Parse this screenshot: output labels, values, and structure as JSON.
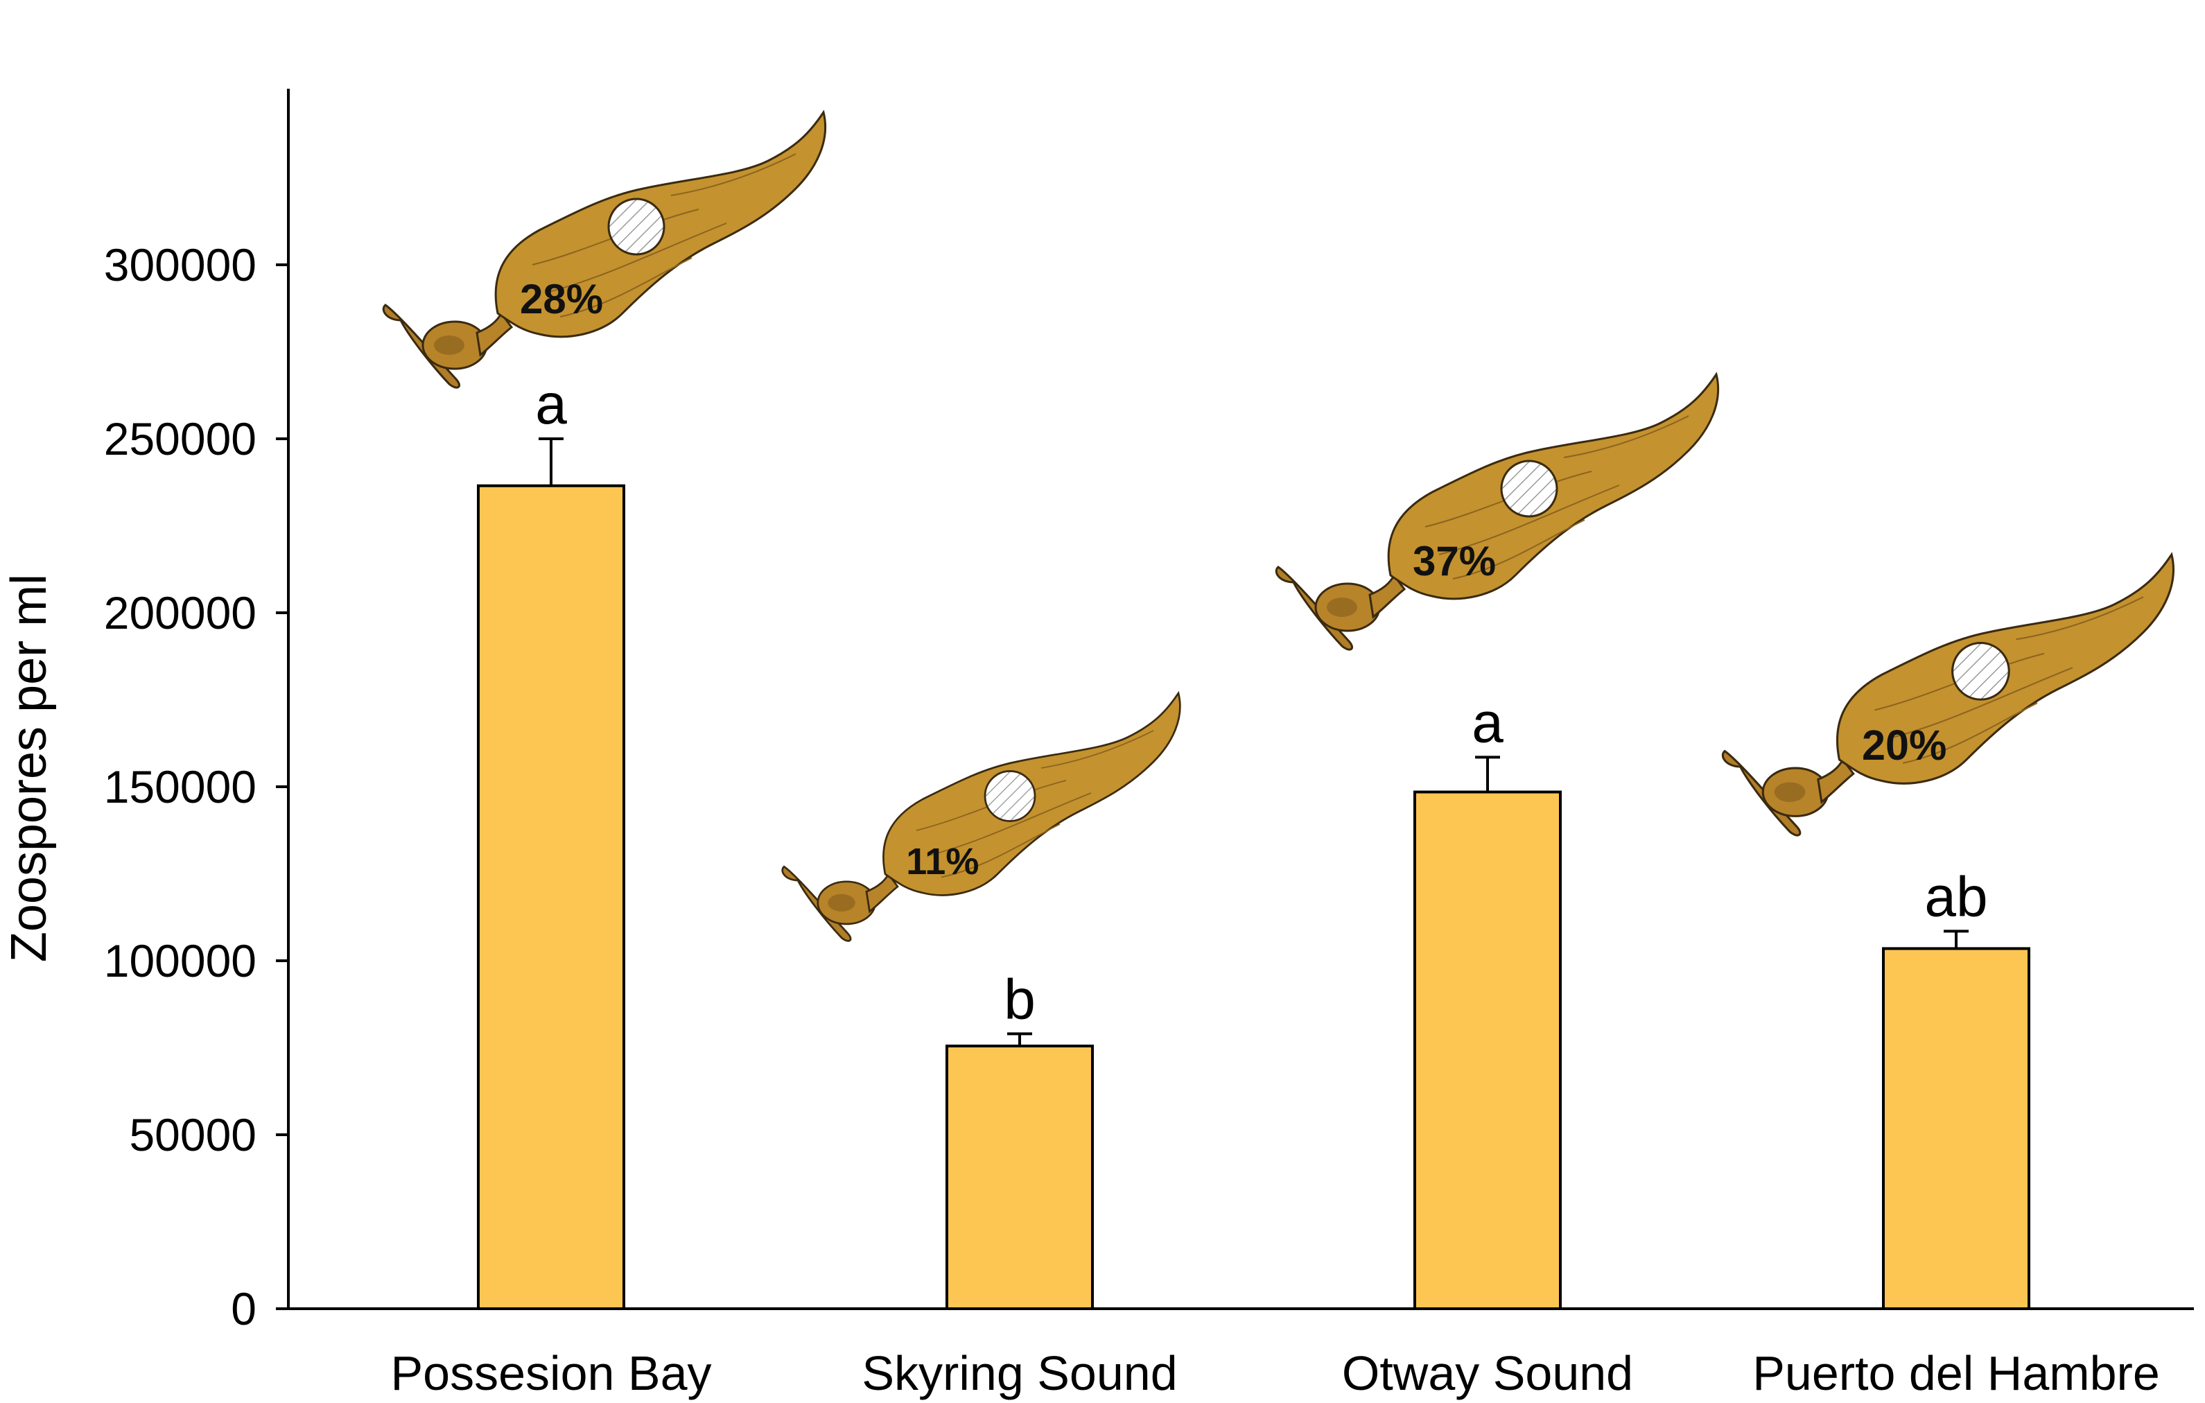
{
  "chart_data": {
    "type": "bar",
    "title": "",
    "xlabel": "",
    "ylabel": "Zoospores per ml",
    "ylim": [
      0,
      350000
    ],
    "yticks": [
      0,
      50000,
      100000,
      150000,
      200000,
      250000,
      300000
    ],
    "ytick_labels": [
      "0",
      "50000",
      "100000",
      "150000",
      "200000",
      "250000",
      "300000"
    ],
    "categories": [
      "Possesion Bay",
      "Skyring Sound",
      "Otway Sound",
      "Puerto del Hambre"
    ],
    "values": [
      236500,
      75500,
      148500,
      103500
    ],
    "errors": [
      13500,
      3500,
      10000,
      5000
    ],
    "significance_letters": [
      "a",
      "b",
      "a",
      "ab"
    ],
    "illustration_percentages": [
      "28%",
      "11%",
      "37%",
      "20%"
    ],
    "grid": false,
    "legend": "none",
    "colors": {
      "bar_fill": "#FDC653",
      "bar_stroke": "#000000",
      "kelp_blade": "#C4922E",
      "kelp_dark": "#7A5518",
      "kelp_holdfast": "#B07D28",
      "disc_fill": "#FFFFFF",
      "disc_hatch": "#9A9A9A"
    },
    "illustration_icon": "kelp-sporophyte-icon"
  }
}
